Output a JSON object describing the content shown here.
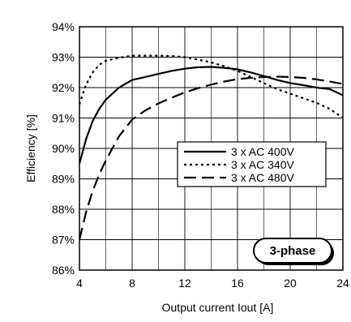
{
  "chart_data": {
    "type": "line",
    "xlabel": "Output current Iout [A]",
    "ylabel": "Efficiency [%]",
    "xlim": [
      4,
      24
    ],
    "ylim": [
      86,
      94
    ],
    "x_ticks": [
      4,
      8,
      12,
      16,
      20,
      24
    ],
    "x_tick_labels": [
      "4",
      "8",
      "12",
      "16",
      "20",
      "24"
    ],
    "y_ticks": [
      86,
      87,
      88,
      89,
      90,
      91,
      92,
      93,
      94
    ],
    "y_tick_labels": [
      "86%",
      "87%",
      "88%",
      "89%",
      "90%",
      "91%",
      "92%",
      "93%",
      "94%"
    ],
    "grid": true,
    "legend_position": "center-right",
    "badge": "3-phase",
    "series": [
      {
        "name": "3 x AC 400V",
        "style": "solid",
        "x": [
          4,
          4.5,
          5,
          5.5,
          6,
          7,
          8,
          9,
          10,
          11,
          12,
          13,
          14,
          15,
          16,
          17,
          18,
          19,
          20,
          21,
          22,
          23,
          24
        ],
        "y": [
          89.5,
          90.3,
          90.9,
          91.3,
          91.6,
          92.0,
          92.25,
          92.35,
          92.45,
          92.55,
          92.62,
          92.67,
          92.68,
          92.65,
          92.6,
          92.5,
          92.38,
          92.25,
          92.15,
          92.08,
          92.0,
          91.95,
          91.75
        ]
      },
      {
        "name": "3 x AC 340V",
        "style": "dotted",
        "x": [
          4,
          4.5,
          5,
          5.5,
          6,
          7,
          8,
          9,
          10,
          11,
          12,
          13,
          14,
          15,
          16,
          17,
          18,
          19,
          20,
          21,
          22,
          23,
          24
        ],
        "y": [
          91.45,
          92.1,
          92.5,
          92.75,
          92.88,
          92.98,
          93.05,
          93.05,
          93.05,
          93.04,
          93.0,
          92.92,
          92.83,
          92.7,
          92.55,
          92.35,
          92.15,
          91.95,
          91.8,
          91.65,
          91.5,
          91.3,
          91.0
        ]
      },
      {
        "name": "3 x AC 480V",
        "style": "dashed",
        "x": [
          4,
          4.5,
          5,
          5.5,
          6,
          6.5,
          7,
          8,
          9,
          10,
          11,
          12,
          13,
          14,
          15,
          16,
          17,
          18,
          19,
          20,
          21,
          22,
          23,
          24
        ],
        "y": [
          87.0,
          87.9,
          88.6,
          89.15,
          89.6,
          90.0,
          90.4,
          90.95,
          91.25,
          91.48,
          91.67,
          91.84,
          91.98,
          92.1,
          92.2,
          92.28,
          92.32,
          92.35,
          92.36,
          92.35,
          92.32,
          92.27,
          92.2,
          92.12
        ]
      }
    ]
  }
}
